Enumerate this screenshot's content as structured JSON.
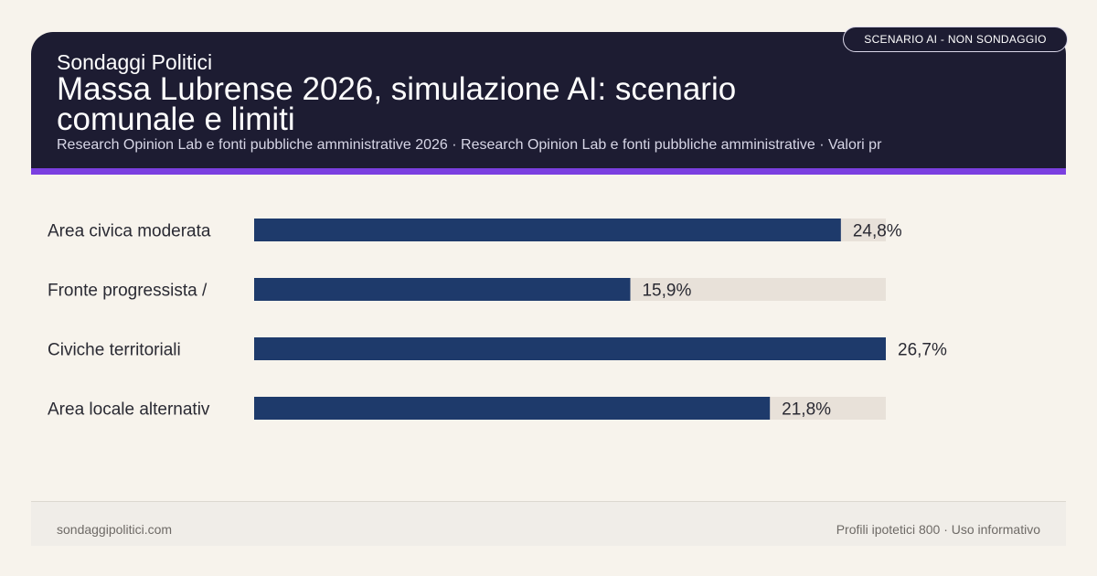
{
  "badge": "SCENARIO AI - NON SONDAGGIO",
  "header": {
    "label": "Sondaggi Politici",
    "title": "Massa Lubrense 2026, simulazione AI: scenario comunale e limiti",
    "subtitle": "Research Opinion Lab e fonti pubbliche amministrative 2026 · Research Opinion Lab e fonti pubbliche amministrative · Valori pr"
  },
  "footer": {
    "site": "sondaggipolitici.com",
    "note": "Profili ipotetici 800 · Uso informativo"
  },
  "colors": {
    "bar": "#1e3a6b",
    "track": "#e8e1d9",
    "accent": "#7b3fe0",
    "header_bg": "#1d1c32"
  },
  "chart_data": {
    "type": "bar",
    "orientation": "horizontal",
    "categories": [
      "Area civica moderata",
      "Fronte progressista /",
      "Civiche territoriali",
      "Area locale alternativ"
    ],
    "values": [
      24.8,
      15.9,
      26.7,
      21.8
    ],
    "value_labels": [
      "24,8%",
      "15,9%",
      "26,7%",
      "21,8%"
    ],
    "xlim": [
      0,
      26.7
    ],
    "unit": "%"
  }
}
